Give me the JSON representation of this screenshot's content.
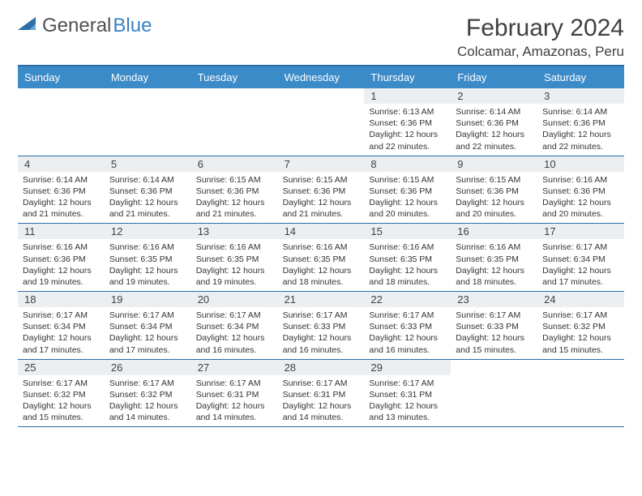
{
  "logo": {
    "part1": "General",
    "part2": "Blue"
  },
  "title": "February 2024",
  "location": "Colcamar, Amazonas, Peru",
  "colors": {
    "header_bg": "#3b8bc9",
    "border": "#2d6ea8",
    "daynum_bg": "#eceff1",
    "logo_blue": "#3b7fc4"
  },
  "dayNames": [
    "Sunday",
    "Monday",
    "Tuesday",
    "Wednesday",
    "Thursday",
    "Friday",
    "Saturday"
  ],
  "grid": {
    "firstDayIndex": 4,
    "daysInMonth": 29
  },
  "days": {
    "1": {
      "sunrise": "6:13 AM",
      "sunset": "6:36 PM",
      "daylight": "12 hours and 22 minutes."
    },
    "2": {
      "sunrise": "6:14 AM",
      "sunset": "6:36 PM",
      "daylight": "12 hours and 22 minutes."
    },
    "3": {
      "sunrise": "6:14 AM",
      "sunset": "6:36 PM",
      "daylight": "12 hours and 22 minutes."
    },
    "4": {
      "sunrise": "6:14 AM",
      "sunset": "6:36 PM",
      "daylight": "12 hours and 21 minutes."
    },
    "5": {
      "sunrise": "6:14 AM",
      "sunset": "6:36 PM",
      "daylight": "12 hours and 21 minutes."
    },
    "6": {
      "sunrise": "6:15 AM",
      "sunset": "6:36 PM",
      "daylight": "12 hours and 21 minutes."
    },
    "7": {
      "sunrise": "6:15 AM",
      "sunset": "6:36 PM",
      "daylight": "12 hours and 21 minutes."
    },
    "8": {
      "sunrise": "6:15 AM",
      "sunset": "6:36 PM",
      "daylight": "12 hours and 20 minutes."
    },
    "9": {
      "sunrise": "6:15 AM",
      "sunset": "6:36 PM",
      "daylight": "12 hours and 20 minutes."
    },
    "10": {
      "sunrise": "6:16 AM",
      "sunset": "6:36 PM",
      "daylight": "12 hours and 20 minutes."
    },
    "11": {
      "sunrise": "6:16 AM",
      "sunset": "6:36 PM",
      "daylight": "12 hours and 19 minutes."
    },
    "12": {
      "sunrise": "6:16 AM",
      "sunset": "6:35 PM",
      "daylight": "12 hours and 19 minutes."
    },
    "13": {
      "sunrise": "6:16 AM",
      "sunset": "6:35 PM",
      "daylight": "12 hours and 19 minutes."
    },
    "14": {
      "sunrise": "6:16 AM",
      "sunset": "6:35 PM",
      "daylight": "12 hours and 18 minutes."
    },
    "15": {
      "sunrise": "6:16 AM",
      "sunset": "6:35 PM",
      "daylight": "12 hours and 18 minutes."
    },
    "16": {
      "sunrise": "6:16 AM",
      "sunset": "6:35 PM",
      "daylight": "12 hours and 18 minutes."
    },
    "17": {
      "sunrise": "6:17 AM",
      "sunset": "6:34 PM",
      "daylight": "12 hours and 17 minutes."
    },
    "18": {
      "sunrise": "6:17 AM",
      "sunset": "6:34 PM",
      "daylight": "12 hours and 17 minutes."
    },
    "19": {
      "sunrise": "6:17 AM",
      "sunset": "6:34 PM",
      "daylight": "12 hours and 17 minutes."
    },
    "20": {
      "sunrise": "6:17 AM",
      "sunset": "6:34 PM",
      "daylight": "12 hours and 16 minutes."
    },
    "21": {
      "sunrise": "6:17 AM",
      "sunset": "6:33 PM",
      "daylight": "12 hours and 16 minutes."
    },
    "22": {
      "sunrise": "6:17 AM",
      "sunset": "6:33 PM",
      "daylight": "12 hours and 16 minutes."
    },
    "23": {
      "sunrise": "6:17 AM",
      "sunset": "6:33 PM",
      "daylight": "12 hours and 15 minutes."
    },
    "24": {
      "sunrise": "6:17 AM",
      "sunset": "6:32 PM",
      "daylight": "12 hours and 15 minutes."
    },
    "25": {
      "sunrise": "6:17 AM",
      "sunset": "6:32 PM",
      "daylight": "12 hours and 15 minutes."
    },
    "26": {
      "sunrise": "6:17 AM",
      "sunset": "6:32 PM",
      "daylight": "12 hours and 14 minutes."
    },
    "27": {
      "sunrise": "6:17 AM",
      "sunset": "6:31 PM",
      "daylight": "12 hours and 14 minutes."
    },
    "28": {
      "sunrise": "6:17 AM",
      "sunset": "6:31 PM",
      "daylight": "12 hours and 14 minutes."
    },
    "29": {
      "sunrise": "6:17 AM",
      "sunset": "6:31 PM",
      "daylight": "12 hours and 13 minutes."
    }
  },
  "labels": {
    "sunrise": "Sunrise: ",
    "sunset": "Sunset: ",
    "daylight": "Daylight: "
  }
}
